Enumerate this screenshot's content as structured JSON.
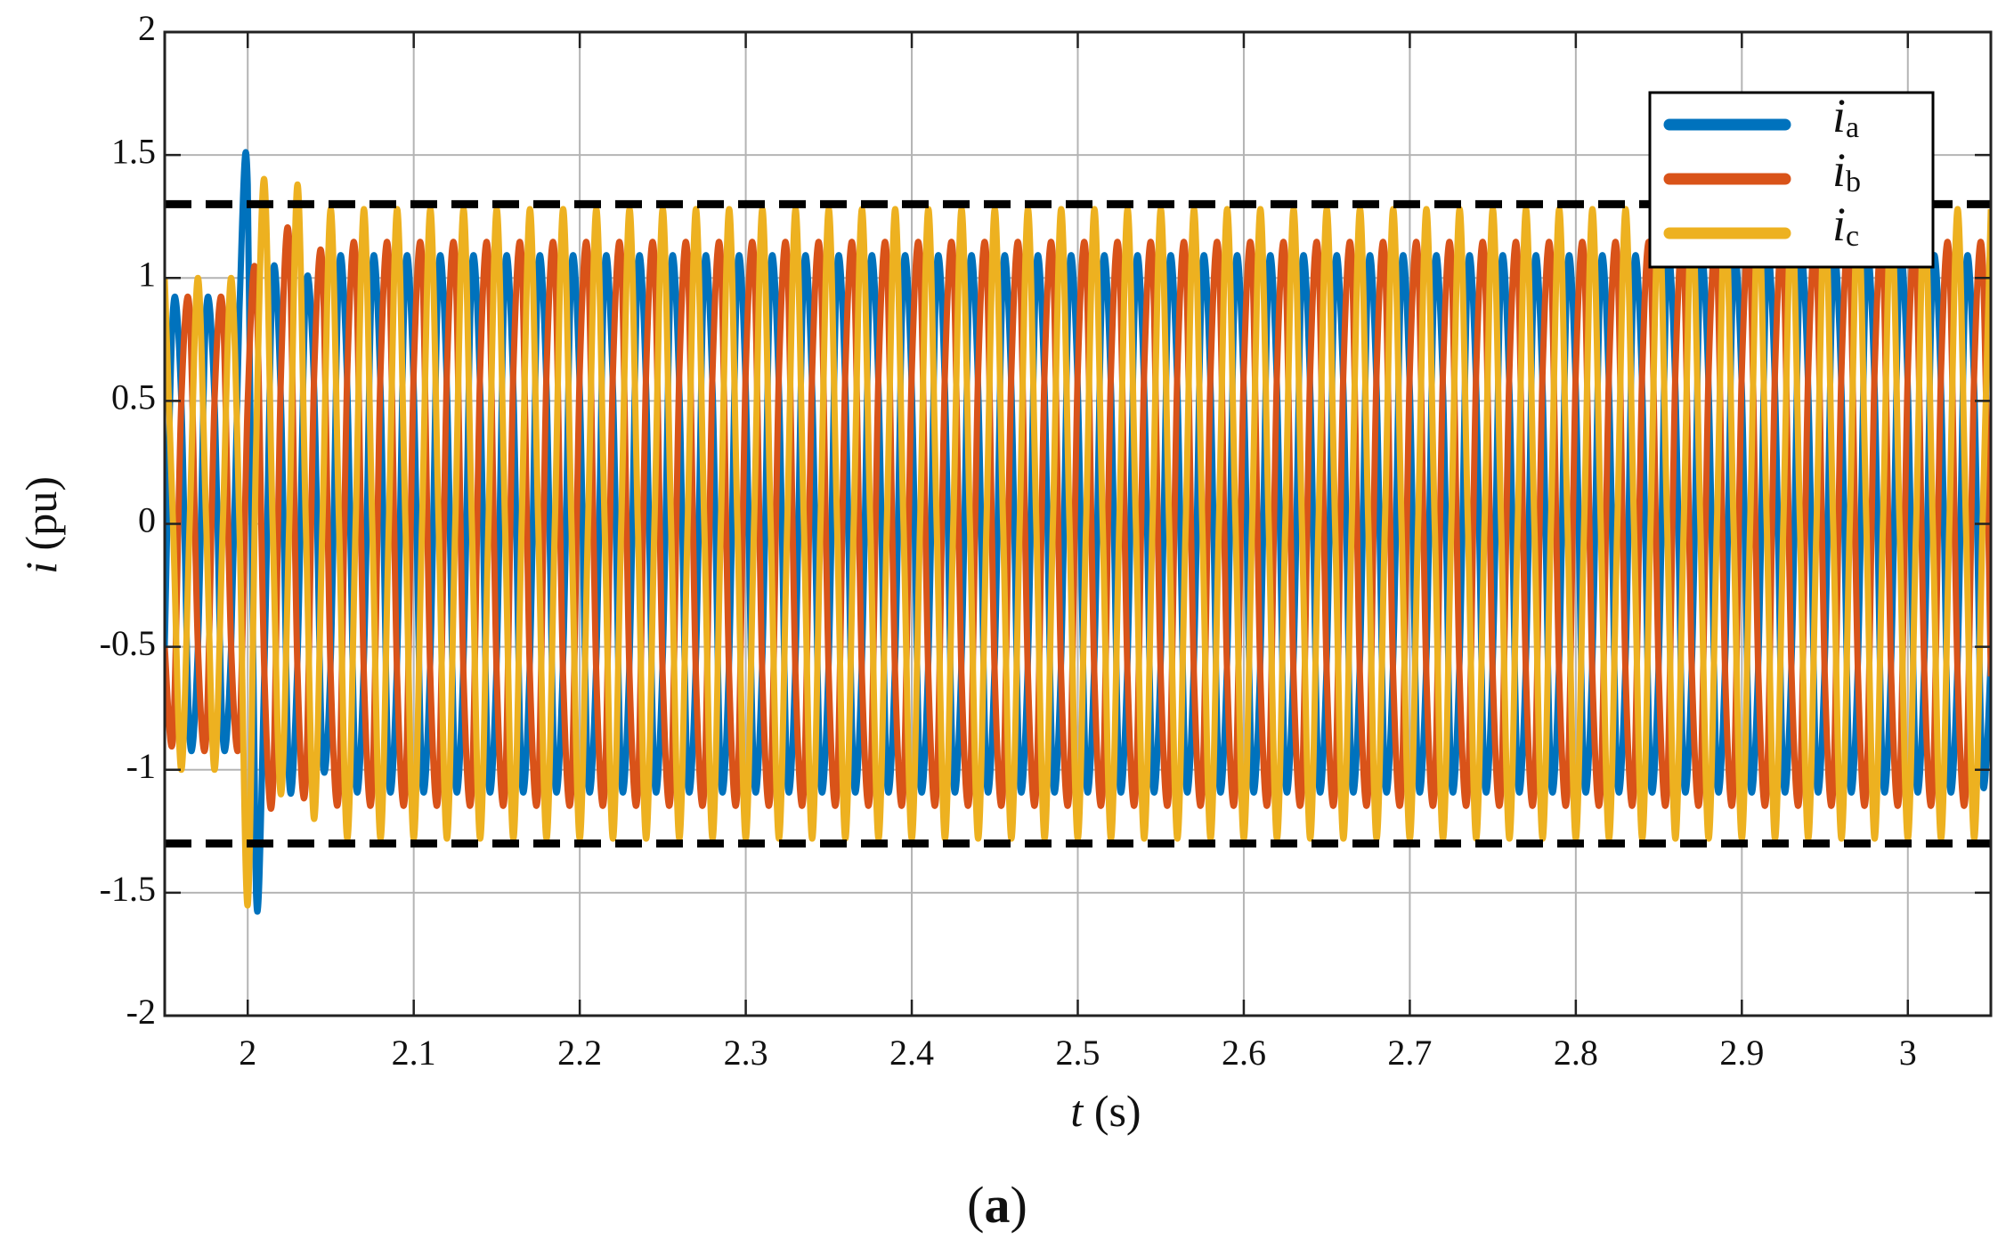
{
  "chart_data": {
    "type": "line",
    "xlabel": "t (s)",
    "ylabel": "i (pu)",
    "caption": "(a)",
    "xlim": [
      1.95,
      3.05
    ],
    "xticks": [
      2,
      2.1,
      2.2,
      2.3,
      2.4,
      2.5,
      2.6,
      2.7,
      2.8,
      2.9,
      3
    ],
    "ylim": [
      -2,
      2
    ],
    "yticks": [
      -2,
      -1.5,
      -1,
      -0.5,
      0,
      0.5,
      1,
      1.5,
      2
    ],
    "grid": true,
    "legend": "upper right",
    "hlines": [
      1.3,
      -1.3
    ],
    "x": [
      1.95,
      1.955,
      1.96,
      1.965,
      1.97,
      1.975,
      1.98,
      1.985,
      1.99,
      1.995,
      2,
      2.005,
      2.01,
      2.015,
      2.02,
      2.025,
      2.03,
      2.035,
      2.04,
      2.045,
      2.05,
      2.055,
      2.06,
      2.065,
      2.07,
      2.075,
      2.08,
      2.085,
      2.09,
      2.095,
      2.1,
      2.105,
      2.11,
      2.115,
      2.12,
      2.125,
      2.13,
      2.135,
      2.14,
      2.145,
      2.15,
      2.155,
      2.16,
      2.165,
      2.17,
      2.175,
      2.18,
      2.185,
      2.19,
      2.195,
      2.2,
      2.205,
      2.21,
      2.215,
      2.22,
      2.225,
      2.23,
      2.235,
      2.24,
      2.245,
      2.25,
      2.255,
      2.26,
      2.265,
      2.27,
      2.275,
      2.28,
      2.285,
      2.29,
      2.295,
      2.3,
      2.305,
      2.31,
      2.315,
      2.32,
      2.325,
      2.33,
      2.335,
      2.34,
      2.345,
      2.35,
      2.355,
      2.36,
      2.365,
      2.37,
      2.375,
      2.38,
      2.385,
      2.39,
      2.395,
      2.4,
      2.405,
      2.41,
      2.415,
      2.42,
      2.425,
      2.43,
      2.435,
      2.44,
      2.445,
      2.45,
      2.455,
      2.46,
      2.465,
      2.47,
      2.475,
      2.48,
      2.485,
      2.49,
      2.495,
      2.5,
      2.505,
      2.51,
      2.515,
      2.52,
      2.525,
      2.53,
      2.535,
      2.54,
      2.545,
      2.55,
      2.555,
      2.56,
      2.565,
      2.57,
      2.575,
      2.58,
      2.585,
      2.59,
      2.595,
      2.6,
      2.605,
      2.61,
      2.615,
      2.62,
      2.625,
      2.63,
      2.635,
      2.64,
      2.645,
      2.65,
      2.655,
      2.66,
      2.665,
      2.67,
      2.675,
      2.68,
      2.685,
      2.69,
      2.695,
      2.7,
      2.705,
      2.71,
      2.715,
      2.72,
      2.725,
      2.73,
      2.735,
      2.74,
      2.745,
      2.75,
      2.755,
      2.76,
      2.765,
      2.77,
      2.775,
      2.78,
      2.785,
      2.79,
      2.795,
      2.8,
      2.805,
      2.81,
      2.815,
      2.82,
      2.825,
      2.83,
      2.835,
      2.84,
      2.845,
      2.85,
      2.855,
      2.86,
      2.865,
      2.87,
      2.875,
      2.88,
      2.885,
      2.89,
      2.895,
      2.9,
      2.905,
      2.91,
      2.915,
      2.92,
      2.925,
      2.93,
      2.935,
      2.94,
      2.945,
      2.95,
      2.955,
      2.96,
      2.965,
      2.97,
      2.975,
      2.98,
      2.985,
      2.99,
      2.995,
      3,
      3.005,
      3.01,
      3.015,
      3.02,
      3.025,
      3.03,
      3.035,
      3.04,
      3.045,
      3.05
    ],
    "series": [
      {
        "name": "ia",
        "color": "#0072bd",
        "values": [
          -0.5,
          0.87,
          0.5,
          -0.87,
          -0.5,
          0.87,
          0.5,
          -0.87,
          -0.5,
          0.87,
          1.38,
          -1.5,
          -0.6,
          1.0,
          0.5,
          -1.05,
          -0.55,
          0.95,
          0.55,
          -0.95,
          -0.55,
          1.04,
          0.55,
          -1.04,
          -0.55,
          1.04,
          0.55,
          -1.04,
          -0.55,
          1.04,
          0.55,
          -1.04,
          -0.55,
          1.04,
          0.55,
          -1.04,
          -0.55,
          1.04,
          0.55,
          -1.04,
          -0.55,
          1.04,
          0.55,
          -1.04,
          -0.55,
          1.04,
          0.55,
          -1.04,
          -0.55,
          1.04,
          0.55,
          -1.04,
          -0.55,
          1.04,
          0.55,
          -1.04,
          -0.55,
          1.04,
          0.55,
          -1.04,
          -0.55,
          1.04,
          0.55,
          -1.04,
          -0.55,
          1.04,
          0.55,
          -1.04,
          -0.55,
          1.04,
          0.55,
          -1.04,
          -0.55,
          1.04,
          0.55,
          -1.04,
          -0.55,
          1.04,
          0.55,
          -1.04,
          -0.55,
          1.04,
          0.55,
          -1.04,
          -0.55,
          1.04,
          0.55,
          -1.04,
          -0.55,
          1.04,
          0.55,
          -1.04,
          -0.55,
          1.04,
          0.55,
          -1.04,
          -0.55,
          1.04,
          0.55,
          -1.04,
          -0.55,
          1.04,
          0.55,
          -1.04,
          -0.55,
          1.04,
          0.55,
          -1.04,
          -0.55,
          1.04,
          0.55,
          -1.04,
          -0.55,
          1.04,
          0.55,
          -1.04,
          -0.55,
          1.04,
          0.55,
          -1.04,
          -0.55,
          1.04,
          0.55,
          -1.04,
          -0.55,
          1.04,
          0.55,
          -1.04,
          -0.55,
          1.04,
          0.55,
          -1.04,
          -0.55,
          1.04,
          0.55,
          -1.04,
          -0.55,
          1.04,
          0.55,
          -1.04,
          -0.55,
          1.04,
          0.55,
          -1.04,
          -0.55,
          1.04,
          0.55,
          -1.04,
          -0.55,
          1.04,
          0.55,
          -1.04,
          -0.55,
          1.04,
          0.55,
          -1.04,
          -0.55,
          1.04,
          0.55,
          -1.04,
          -0.55,
          1.04,
          0.55,
          -1.04,
          -0.55,
          1.04,
          0.55,
          -1.04,
          -0.55,
          1.04,
          0.55,
          -1.04,
          -0.55,
          1.04,
          0.55,
          -1.04,
          -0.55,
          1.04,
          0.55,
          -1.04,
          -0.55,
          1.04,
          0.55,
          -1.04,
          -0.55,
          1.04,
          0.55,
          -1.04,
          -0.55,
          1.04,
          0.55,
          -1.04,
          -0.55,
          1.04,
          0.55,
          -1.04,
          -0.55,
          1.04,
          0.55,
          -1.04,
          -0.55,
          1.04,
          0.55,
          -1.04,
          -0.55,
          1.04,
          0.55,
          -1.04,
          -0.55,
          1.04,
          0.55,
          -1.04,
          -0.55,
          1.04,
          0.55,
          -1.04,
          -0.55,
          1.04,
          0.55,
          -1.04,
          -0.55
        ]
      },
      {
        "name": "ib",
        "color": "#d95319",
        "values": [
          -0.5,
          -0.87,
          0.5,
          0.87,
          -0.5,
          -0.87,
          0.5,
          0.87,
          -0.5,
          -0.87,
          0.5,
          1.0,
          -0.6,
          -1.1,
          0.6,
          1.15,
          -0.6,
          -1.05,
          0.6,
          1.05,
          -0.62,
          -1.08,
          0.62,
          1.08,
          -0.62,
          -1.08,
          0.62,
          1.08,
          -0.62,
          -1.08,
          0.62,
          1.08,
          -0.62,
          -1.08,
          0.62,
          1.08,
          -0.62,
          -1.08,
          0.62,
          1.08,
          -0.62,
          -1.08,
          0.62,
          1.08,
          -0.62,
          -1.08,
          0.62,
          1.08,
          -0.62,
          -1.08,
          0.62,
          1.08,
          -0.62,
          -1.08,
          0.62,
          1.08,
          -0.62,
          -1.08,
          0.62,
          1.08,
          -0.62,
          -1.08,
          0.62,
          1.08,
          -0.62,
          -1.08,
          0.62,
          1.08,
          -0.62,
          -1.08,
          0.62,
          1.08,
          -0.62,
          -1.08,
          0.62,
          1.08,
          -0.62,
          -1.08,
          0.62,
          1.08,
          -0.62,
          -1.08,
          0.62,
          1.08,
          -0.62,
          -1.08,
          0.62,
          1.08,
          -0.62,
          -1.08,
          0.62,
          1.08,
          -0.62,
          -1.08,
          0.62,
          1.08,
          -0.62,
          -1.08,
          0.62,
          1.08,
          -0.62,
          -1.08,
          0.62,
          1.08,
          -0.62,
          -1.08,
          0.62,
          1.08,
          -0.62,
          -1.08,
          0.62,
          1.08,
          -0.62,
          -1.08,
          0.62,
          1.08,
          -0.62,
          -1.08,
          0.62,
          1.08,
          -0.62,
          -1.08,
          0.62,
          1.08,
          -0.62,
          -1.08,
          0.62,
          1.08,
          -0.62,
          -1.08,
          0.62,
          1.08,
          -0.62,
          -1.08,
          0.62,
          1.08,
          -0.62,
          -1.08,
          0.62,
          1.08,
          -0.62,
          -1.08,
          0.62,
          1.08,
          -0.62,
          -1.08,
          0.62,
          1.08,
          -0.62,
          -1.08,
          0.62,
          1.08,
          -0.62,
          -1.08,
          0.62,
          1.08,
          -0.62,
          -1.08,
          0.62,
          1.08,
          -0.62,
          -1.08,
          0.62,
          1.08,
          -0.62,
          -1.08,
          0.62,
          1.08,
          -0.62,
          -1.08,
          0.62,
          1.08,
          -0.62,
          -1.08,
          0.62,
          1.08,
          -0.62,
          -1.08,
          0.62,
          1.08,
          -0.62,
          -1.08,
          0.62,
          1.08,
          -0.62,
          -1.08,
          0.62,
          1.08,
          -0.62,
          -1.08,
          0.62,
          1.08,
          -0.62,
          -1.08,
          0.62,
          1.08,
          -0.62,
          -1.08,
          0.62,
          1.08,
          -0.62,
          -1.08,
          0.62,
          1.08,
          -0.62,
          -1.08,
          0.62,
          1.08,
          -0.62,
          -1.08,
          0.62,
          1.08,
          -0.62,
          -1.08,
          0.62,
          1.08,
          -0.62,
          -1.08,
          0.62,
          1.08,
          -0.62
        ]
      },
      {
        "name": "ic",
        "color": "#edb120",
        "values": [
          1,
          0,
          -1,
          0,
          1,
          0,
          -1,
          0,
          1,
          0,
          -1.55,
          0.3,
          1.4,
          0,
          -1.1,
          0,
          1.38,
          0,
          -1.2,
          0,
          1.28,
          0,
          -1.28,
          0,
          1.28,
          0,
          -1.28,
          0,
          1.28,
          0,
          -1.28,
          0,
          1.28,
          0,
          -1.28,
          0,
          1.28,
          0,
          -1.28,
          0,
          1.28,
          0,
          -1.28,
          0,
          1.28,
          0,
          -1.28,
          0,
          1.28,
          0,
          -1.28,
          0,
          1.28,
          0,
          -1.28,
          0,
          1.28,
          0,
          -1.28,
          0,
          1.28,
          0,
          -1.28,
          0,
          1.28,
          0,
          -1.28,
          0,
          1.28,
          0,
          -1.28,
          0,
          1.28,
          0,
          -1.28,
          0,
          1.28,
          0,
          -1.28,
          0,
          1.28,
          0,
          -1.28,
          0,
          1.28,
          0,
          -1.28,
          0,
          1.28,
          0,
          -1.28,
          0,
          1.28,
          0,
          -1.28,
          0,
          1.28,
          0,
          -1.28,
          0,
          1.28,
          0,
          -1.28,
          0,
          1.28,
          0,
          -1.28,
          0,
          1.28,
          0,
          -1.28,
          0,
          1.28,
          0,
          -1.28,
          0,
          1.28,
          0,
          -1.28,
          0,
          1.28,
          0,
          -1.28,
          0,
          1.28,
          0,
          -1.28,
          0,
          1.28,
          0,
          -1.28,
          0,
          1.28,
          0,
          -1.28,
          0,
          1.28,
          0,
          -1.28,
          0,
          1.28,
          0,
          -1.28,
          0,
          1.28,
          0,
          -1.28,
          0,
          1.28,
          0,
          -1.28,
          0,
          1.28,
          0,
          -1.28,
          0,
          1.28,
          0,
          -1.28,
          0,
          1.28,
          0,
          -1.28,
          0,
          1.28,
          0,
          -1.28,
          0,
          1.28,
          0,
          -1.28,
          0,
          1.28,
          0,
          -1.28,
          0,
          1.28,
          0,
          -1.28,
          0,
          1.28,
          0,
          -1.28,
          0,
          1.28,
          0,
          -1.28,
          0,
          1.28,
          0,
          -1.28,
          0,
          1.28,
          0,
          -1.28,
          0,
          1.28,
          0,
          -1.28,
          0,
          1.28,
          0,
          -1.28,
          0,
          1.28,
          0,
          -1.28,
          0,
          1.28,
          0,
          -1.28,
          0,
          1.28,
          0,
          -1.28,
          0,
          1.28,
          0,
          -1.28,
          0,
          1.28
        ]
      }
    ]
  }
}
